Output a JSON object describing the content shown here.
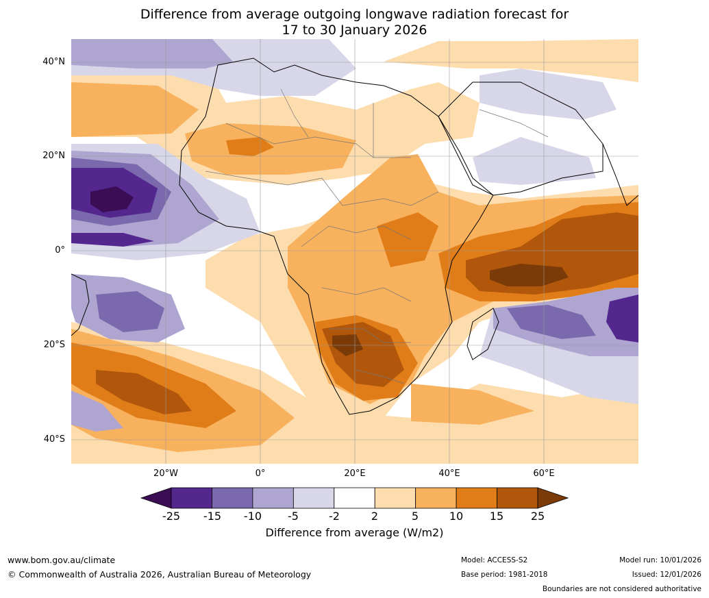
{
  "title_line1": "Difference from average outgoing longwave radiation forecast for",
  "title_line2": "17 to 30 January 2026",
  "map": {
    "latitude_labels": [
      "40°N",
      "20°N",
      "0°",
      "20°S",
      "40°S"
    ],
    "longitude_labels": [
      "20°W",
      "0°",
      "20°E",
      "40°E",
      "60°E"
    ]
  },
  "colorbar": {
    "ticks": [
      "-25",
      "-15",
      "-10",
      "-5",
      "-2",
      "2",
      "5",
      "10",
      "15",
      "25"
    ],
    "colors": [
      "#3a0d55",
      "#54278f",
      "#7a6aad",
      "#aea6d1",
      "#d8d7e9",
      "#ffffff",
      "#fddcae",
      "#f8b15c",
      "#e17d18",
      "#b0570c",
      "#7a3b08"
    ],
    "label": "Difference from average (W/m2)"
  },
  "footer": {
    "website": "www.bom.gov.au/climate",
    "copyright": "© Commonwealth of Australia 2026, Australian Bureau of Meteorology",
    "model": "Model: ACCESS-S2",
    "base_period": "Base period: 1981-2018",
    "model_run": "Model run: 10/01/2026",
    "issued": "Issued: 12/01/2026",
    "disclaimer": "Boundaries are not considered authoritative"
  }
}
